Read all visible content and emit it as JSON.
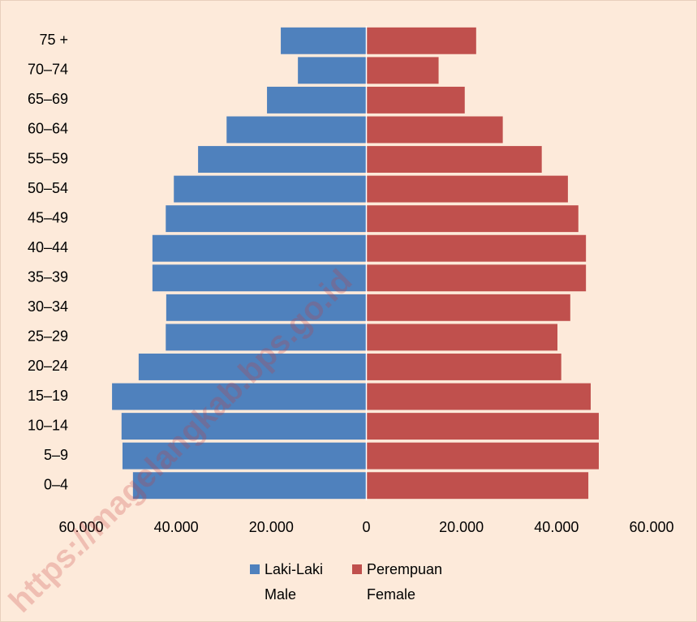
{
  "chart_data": {
    "type": "pyramid",
    "categories": [
      "75 +",
      "70–74",
      "65–69",
      "60–64",
      "55–59",
      "50–54",
      "45–49",
      "40–44",
      "35–39",
      "30–34",
      "25–29",
      "20–24",
      "15–19",
      "10–14",
      "5–9",
      "0–4"
    ],
    "series": [
      {
        "name": "Laki-Laki",
        "name_en": "Male",
        "color": "#4f81bd",
        "values": [
          18000,
          14400,
          20900,
          29400,
          35400,
          40500,
          42200,
          45000,
          45000,
          42100,
          42200,
          47900,
          53500,
          51500,
          51300,
          49100
        ]
      },
      {
        "name": "Perempuan",
        "name_en": "Female",
        "color": "#c0504d",
        "values": [
          23100,
          15200,
          20700,
          28700,
          36900,
          42400,
          44600,
          46200,
          46200,
          42900,
          40200,
          41000,
          47200,
          48900,
          48900,
          46700
        ]
      }
    ],
    "xlim": [
      -60000,
      60000
    ],
    "xticks": [
      {
        "value": -60000,
        "label": "60.000"
      },
      {
        "value": -40000,
        "label": "40.000"
      },
      {
        "value": -20000,
        "label": "20.000"
      },
      0,
      {
        "value": 20000,
        "label": "20.000"
      },
      {
        "value": 40000,
        "label": "40.000"
      },
      {
        "value": 60000,
        "label": "60.000"
      }
    ],
    "watermark": "https://magelangkab.bps.go.id"
  }
}
